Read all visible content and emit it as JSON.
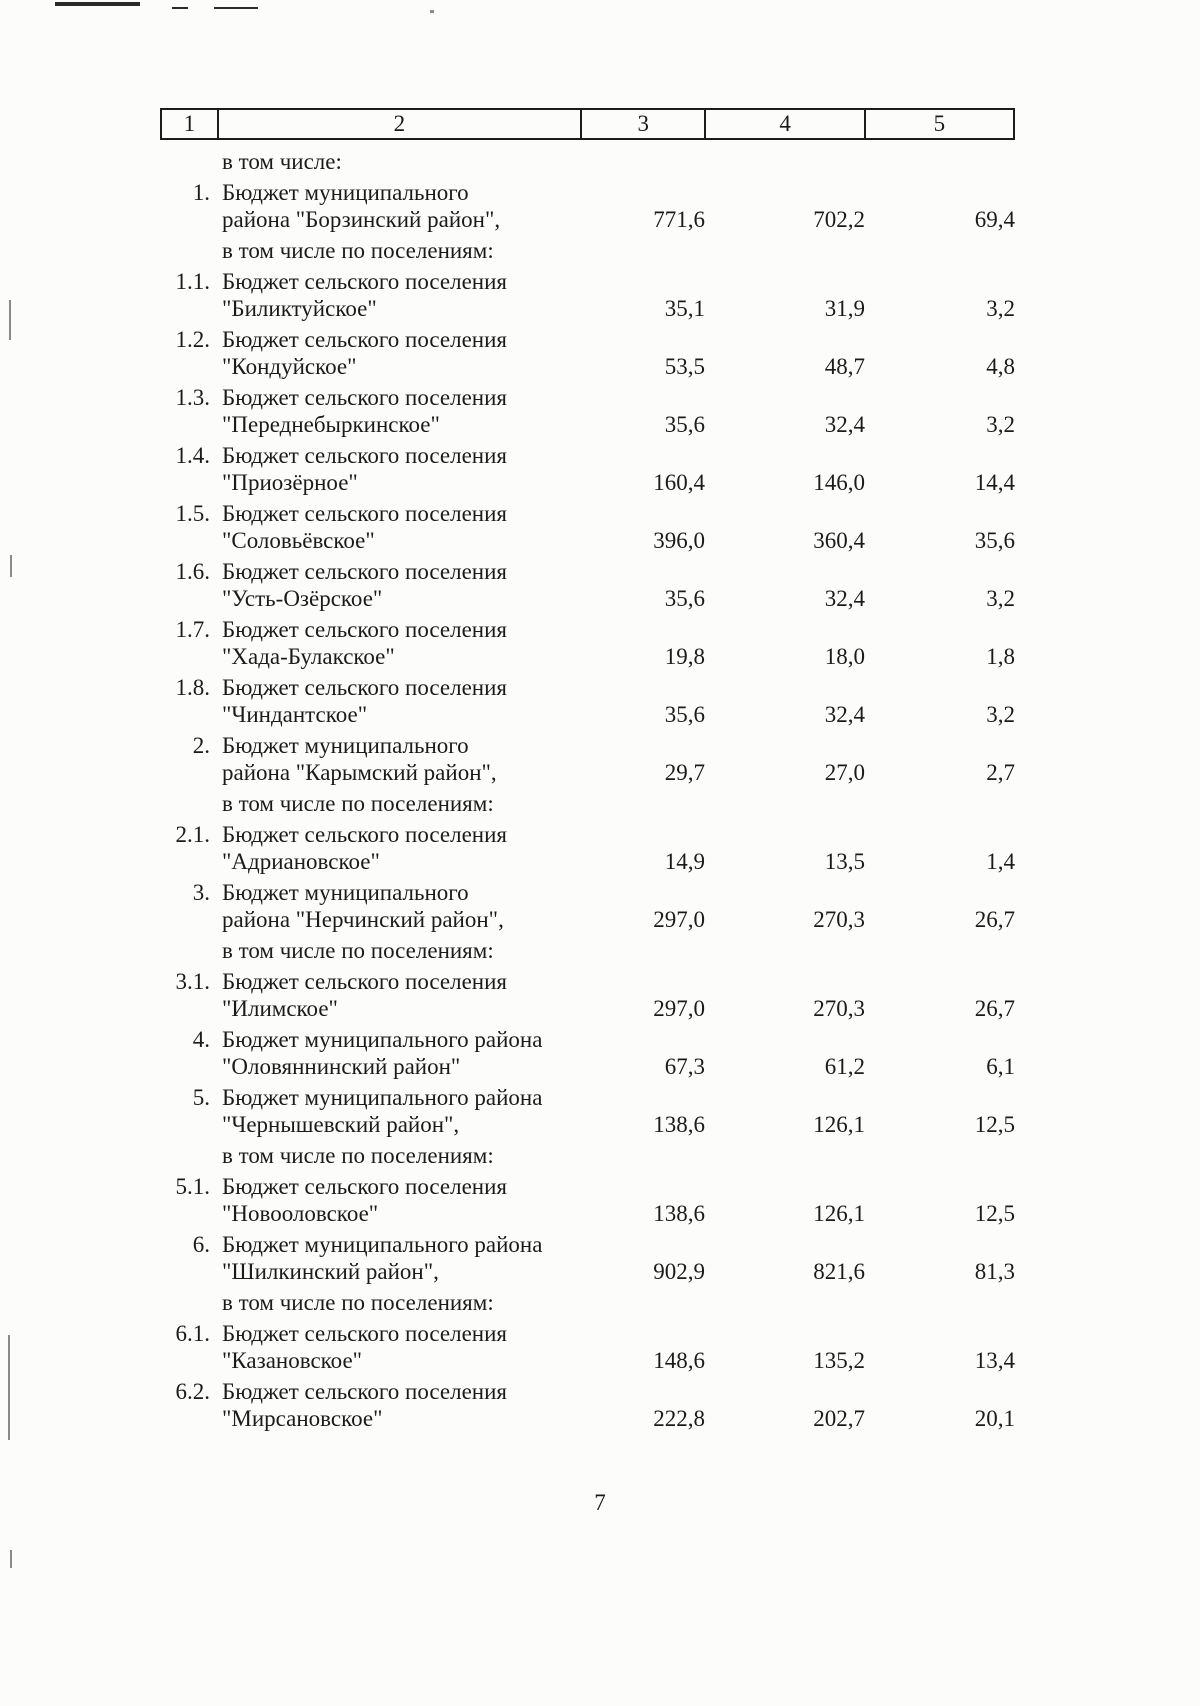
{
  "page_number": "7",
  "table": {
    "header": [
      "1",
      "2",
      "3",
      "4",
      "5"
    ],
    "rows": [
      {
        "type": "subheader",
        "num": "",
        "name_lines": [
          "в том числе:"
        ],
        "values": [
          "",
          "",
          ""
        ]
      },
      {
        "type": "data",
        "num": "1.",
        "name_lines": [
          "Бюджет муниципального",
          "района \"Борзинский район\","
        ],
        "values": [
          "771,6",
          "702,2",
          "69,4"
        ]
      },
      {
        "type": "subheader",
        "num": "",
        "name_lines": [
          "в том числе по поселениям:"
        ],
        "values": [
          "",
          "",
          ""
        ]
      },
      {
        "type": "data",
        "num": "1.1.",
        "name_lines": [
          "Бюджет сельского поселения",
          "\"Биликтуйское\""
        ],
        "values": [
          "35,1",
          "31,9",
          "3,2"
        ]
      },
      {
        "type": "data",
        "num": "1.2.",
        "name_lines": [
          "Бюджет сельского поселения",
          "\"Кондуйское\""
        ],
        "values": [
          "53,5",
          "48,7",
          "4,8"
        ]
      },
      {
        "type": "data",
        "num": "1.3.",
        "name_lines": [
          "Бюджет сельского поселения",
          "\"Переднебыркинское\""
        ],
        "values": [
          "35,6",
          "32,4",
          "3,2"
        ]
      },
      {
        "type": "data",
        "num": "1.4.",
        "name_lines": [
          "Бюджет сельского поселения",
          "\"Приозёрное\""
        ],
        "values": [
          "160,4",
          "146,0",
          "14,4"
        ]
      },
      {
        "type": "data",
        "num": "1.5.",
        "name_lines": [
          "Бюджет сельского поселения",
          "\"Соловьёвское\""
        ],
        "values": [
          "396,0",
          "360,4",
          "35,6"
        ]
      },
      {
        "type": "data",
        "num": "1.6.",
        "name_lines": [
          "Бюджет сельского поселения",
          "\"Усть-Озёрское\""
        ],
        "values": [
          "35,6",
          "32,4",
          "3,2"
        ]
      },
      {
        "type": "data",
        "num": "1.7.",
        "name_lines": [
          "Бюджет сельского поселения",
          "\"Хада-Булакское\""
        ],
        "values": [
          "19,8",
          "18,0",
          "1,8"
        ]
      },
      {
        "type": "data",
        "num": "1.8.",
        "name_lines": [
          "Бюджет сельского поселения",
          "\"Чиндантское\""
        ],
        "values": [
          "35,6",
          "32,4",
          "3,2"
        ]
      },
      {
        "type": "data",
        "num": "2.",
        "name_lines": [
          "Бюджет муниципального",
          "района \"Карымский район\","
        ],
        "values": [
          "29,7",
          "27,0",
          "2,7"
        ]
      },
      {
        "type": "subheader",
        "num": "",
        "name_lines": [
          "в том числе по поселениям:"
        ],
        "values": [
          "",
          "",
          ""
        ]
      },
      {
        "type": "data",
        "num": "2.1.",
        "name_lines": [
          "Бюджет сельского поселения",
          "\"Адриановское\""
        ],
        "values": [
          "14,9",
          "13,5",
          "1,4"
        ]
      },
      {
        "type": "data",
        "num": "3.",
        "name_lines": [
          "Бюджет муниципального",
          "района \"Нерчинский район\","
        ],
        "values": [
          "297,0",
          "270,3",
          "26,7"
        ]
      },
      {
        "type": "subheader",
        "num": "",
        "name_lines": [
          "в том числе по поселениям:"
        ],
        "values": [
          "",
          "",
          ""
        ]
      },
      {
        "type": "data",
        "num": "3.1.",
        "name_lines": [
          "Бюджет сельского поселения",
          "\"Илимское\""
        ],
        "values": [
          "297,0",
          "270,3",
          "26,7"
        ]
      },
      {
        "type": "data",
        "num": "4.",
        "name_lines": [
          "Бюджет муниципального района",
          "\"Оловяннинский район\""
        ],
        "values": [
          "67,3",
          "61,2",
          "6,1"
        ]
      },
      {
        "type": "data",
        "num": "5.",
        "name_lines": [
          "Бюджет муниципального района",
          "\"Чернышевский район\","
        ],
        "values": [
          "138,6",
          "126,1",
          "12,5"
        ]
      },
      {
        "type": "subheader",
        "num": "",
        "name_lines": [
          "в том числе по поселениям:"
        ],
        "values": [
          "",
          "",
          ""
        ]
      },
      {
        "type": "data",
        "num": "5.1.",
        "name_lines": [
          "Бюджет сельского поселения",
          "\"Новооловское\""
        ],
        "values": [
          "138,6",
          "126,1",
          "12,5"
        ]
      },
      {
        "type": "data",
        "num": "6.",
        "name_lines": [
          "Бюджет муниципального района",
          "\"Шилкинский район\","
        ],
        "values": [
          "902,9",
          "821,6",
          "81,3"
        ]
      },
      {
        "type": "subheader",
        "num": "",
        "name_lines": [
          "в том числе по поселениям:"
        ],
        "values": [
          "",
          "",
          ""
        ]
      },
      {
        "type": "data",
        "num": "6.1.",
        "name_lines": [
          "Бюджет сельского поселения",
          "\"Казановское\""
        ],
        "values": [
          "148,6",
          "135,2",
          "13,4"
        ]
      },
      {
        "type": "data",
        "num": "6.2.",
        "name_lines": [
          "Бюджет сельского поселения",
          "\"Мирсановское\""
        ],
        "values": [
          "222,8",
          "202,7",
          "20,1"
        ]
      }
    ]
  }
}
